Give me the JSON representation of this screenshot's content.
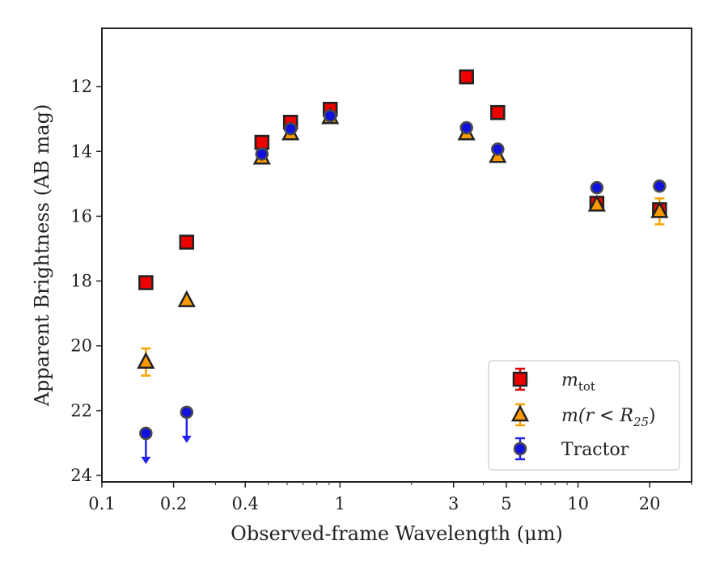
{
  "chart_data": {
    "type": "scatter",
    "xlabel": "Observed-frame Wavelength (μm)",
    "ylabel": "Apparent Brightness (AB mag)",
    "xscale": "log",
    "xlim": [
      0.1,
      30
    ],
    "ylim": [
      24.2,
      10.2
    ],
    "y_inverted": true,
    "grid": false,
    "legend_position": "lower-right",
    "x_ticks": [
      {
        "value": 0.1,
        "label": "0.1"
      },
      {
        "value": 0.2,
        "label": "0.2"
      },
      {
        "value": 0.4,
        "label": "0.4"
      },
      {
        "value": 1,
        "label": "1"
      },
      {
        "value": 3,
        "label": "3"
      },
      {
        "value": 5,
        "label": "5"
      },
      {
        "value": 10,
        "label": "10"
      },
      {
        "value": 20,
        "label": "20"
      }
    ],
    "y_ticks": [
      {
        "value": 12,
        "label": "12"
      },
      {
        "value": 14,
        "label": "14"
      },
      {
        "value": 16,
        "label": "16"
      },
      {
        "value": 18,
        "label": "18"
      },
      {
        "value": 20,
        "label": "20"
      },
      {
        "value": 22,
        "label": "22"
      },
      {
        "value": 24,
        "label": "24"
      }
    ],
    "series": [
      {
        "name": "m_tot",
        "legend_main": "m",
        "legend_sub": "tot",
        "marker": "square",
        "color": "#ee0000",
        "error_color": "#dd0000",
        "points": [
          {
            "x": 0.153,
            "y": 18.05
          },
          {
            "x": 0.227,
            "y": 16.8
          },
          {
            "x": 0.47,
            "y": 13.72
          },
          {
            "x": 0.62,
            "y": 13.1
          },
          {
            "x": 0.91,
            "y": 12.7
          },
          {
            "x": 3.4,
            "y": 11.7
          },
          {
            "x": 4.6,
            "y": 12.8
          },
          {
            "x": 12,
            "y": 15.6
          },
          {
            "x": 22,
            "y": 15.8
          }
        ]
      },
      {
        "name": "m(r < R25)",
        "legend_main": "m(r < R",
        "legend_sub": "25",
        "legend_tail": ")",
        "marker": "triangle",
        "color": "#ff9900",
        "error_color": "#f5a300",
        "points": [
          {
            "x": 0.153,
            "y": 20.5,
            "err": 0.42
          },
          {
            "x": 0.227,
            "y": 18.6
          },
          {
            "x": 0.47,
            "y": 14.2
          },
          {
            "x": 0.62,
            "y": 13.45
          },
          {
            "x": 0.91,
            "y": 12.95
          },
          {
            "x": 3.4,
            "y": 13.45
          },
          {
            "x": 4.6,
            "y": 14.15
          },
          {
            "x": 12,
            "y": 15.65
          },
          {
            "x": 22,
            "y": 15.85,
            "err": 0.4
          }
        ]
      },
      {
        "name": "Tractor",
        "legend_main": "Tractor",
        "marker": "circle",
        "color": "#1111dd",
        "error_color": "#2222ee",
        "points": [
          {
            "x": 0.153,
            "y": 22.7,
            "upper_limit": true
          },
          {
            "x": 0.227,
            "y": 22.05,
            "upper_limit": true
          },
          {
            "x": 0.47,
            "y": 14.08
          },
          {
            "x": 0.62,
            "y": 13.3
          },
          {
            "x": 0.91,
            "y": 12.9
          },
          {
            "x": 3.4,
            "y": 13.27
          },
          {
            "x": 4.6,
            "y": 13.93
          },
          {
            "x": 12,
            "y": 15.12
          },
          {
            "x": 22,
            "y": 15.07
          }
        ]
      }
    ]
  }
}
